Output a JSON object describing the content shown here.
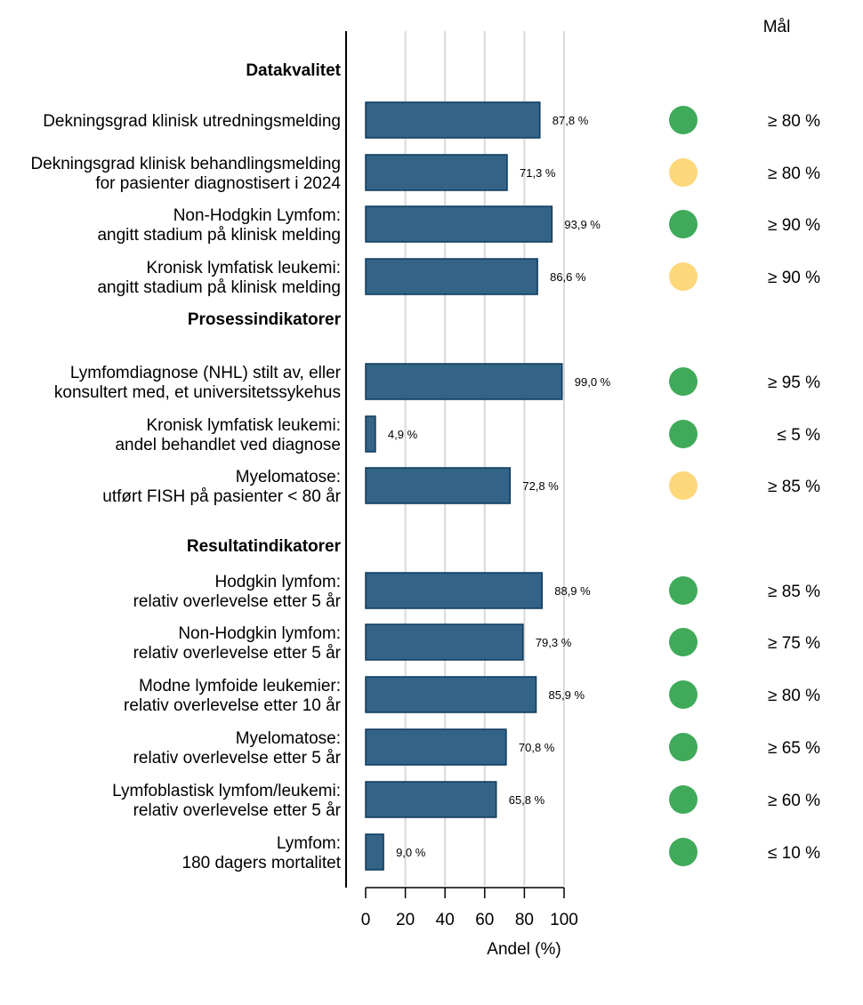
{
  "chart_data": {
    "type": "bar",
    "orientation": "horizontal",
    "xlabel": "Andel (%)",
    "xlim": [
      0,
      100
    ],
    "xticks": [
      "0",
      "20",
      "40",
      "60",
      "80",
      "100"
    ],
    "grid": true,
    "goal_header": "Mål",
    "colors": {
      "bar": "#336487",
      "bar_edge": "#0c3a5c",
      "green": "#3faa5a",
      "yellow": "#fdd87a",
      "grid": "#d9d9d9"
    },
    "sections": [
      {
        "title": "Datakvalitet",
        "rows": [
          {
            "label": [
              "Dekningsgrad klinisk utredningsmelding"
            ],
            "value": 87.8,
            "value_label": "87,8 %",
            "status": "green",
            "goal": "≥ 80 %"
          },
          {
            "label": [
              "Dekningsgrad klinisk behandlingsmelding",
              "for pasienter diagnostisert i 2024"
            ],
            "value": 71.3,
            "value_label": "71,3 %",
            "status": "yellow",
            "goal": "≥ 80 %"
          },
          {
            "label": [
              "Non-Hodgkin Lymfom:",
              "angitt stadium på klinisk melding"
            ],
            "value": 93.9,
            "value_label": "93,9 %",
            "status": "green",
            "goal": "≥ 90 %"
          },
          {
            "label": [
              "Kronisk lymfatisk leukemi:",
              "angitt stadium på klinisk melding"
            ],
            "value": 86.6,
            "value_label": "86,6 %",
            "status": "yellow",
            "goal": "≥ 90 %"
          }
        ]
      },
      {
        "title": "Prosessindikatorer",
        "rows": [
          {
            "label": [
              "Lymfomdiagnose (NHL) stilt av, eller",
              "konsultert med, et universitetssykehus"
            ],
            "value": 99.0,
            "value_label": "99,0 %",
            "status": "green",
            "goal": "≥ 95 %"
          },
          {
            "label": [
              "Kronisk lymfatisk leukemi:",
              "andel behandlet ved diagnose"
            ],
            "value": 4.9,
            "value_label": "4,9 %",
            "status": "green",
            "goal": "≤ 5 %"
          },
          {
            "label": [
              "Myelomatose:",
              "utført FISH på pasienter < 80 år"
            ],
            "value": 72.8,
            "value_label": "72,8 %",
            "status": "yellow",
            "goal": "≥ 85 %"
          }
        ]
      },
      {
        "title": "Resultatindikatorer",
        "rows": [
          {
            "label": [
              "Hodgkin lymfom:",
              "relativ overlevelse etter 5 år"
            ],
            "value": 88.9,
            "value_label": "88,9 %",
            "status": "green",
            "goal": "≥ 85 %"
          },
          {
            "label": [
              "Non-Hodgkin lymfom:",
              "relativ overlevelse etter 5 år"
            ],
            "value": 79.3,
            "value_label": "79,3 %",
            "status": "green",
            "goal": "≥ 75 %"
          },
          {
            "label": [
              "Modne lymfoide leukemier:",
              "relativ overlevelse etter 10 år"
            ],
            "value": 85.9,
            "value_label": "85,9 %",
            "status": "green",
            "goal": "≥ 80 %"
          },
          {
            "label": [
              "Myelomatose:",
              "relativ overlevelse etter 5 år"
            ],
            "value": 70.8,
            "value_label": "70,8 %",
            "status": "green",
            "goal": "≥ 65 %"
          },
          {
            "label": [
              "Lymfoblastisk lymfom/leukemi:",
              "relativ overlevelse etter 5 år"
            ],
            "value": 65.8,
            "value_label": "65,8 %",
            "status": "green",
            "goal": "≥ 60 %"
          },
          {
            "label": [
              "Lymfom:",
              "180 dagers mortalitet"
            ],
            "value": 9.0,
            "value_label": "9,0 %",
            "status": "green",
            "goal": "≤ 10 %"
          }
        ]
      }
    ]
  }
}
